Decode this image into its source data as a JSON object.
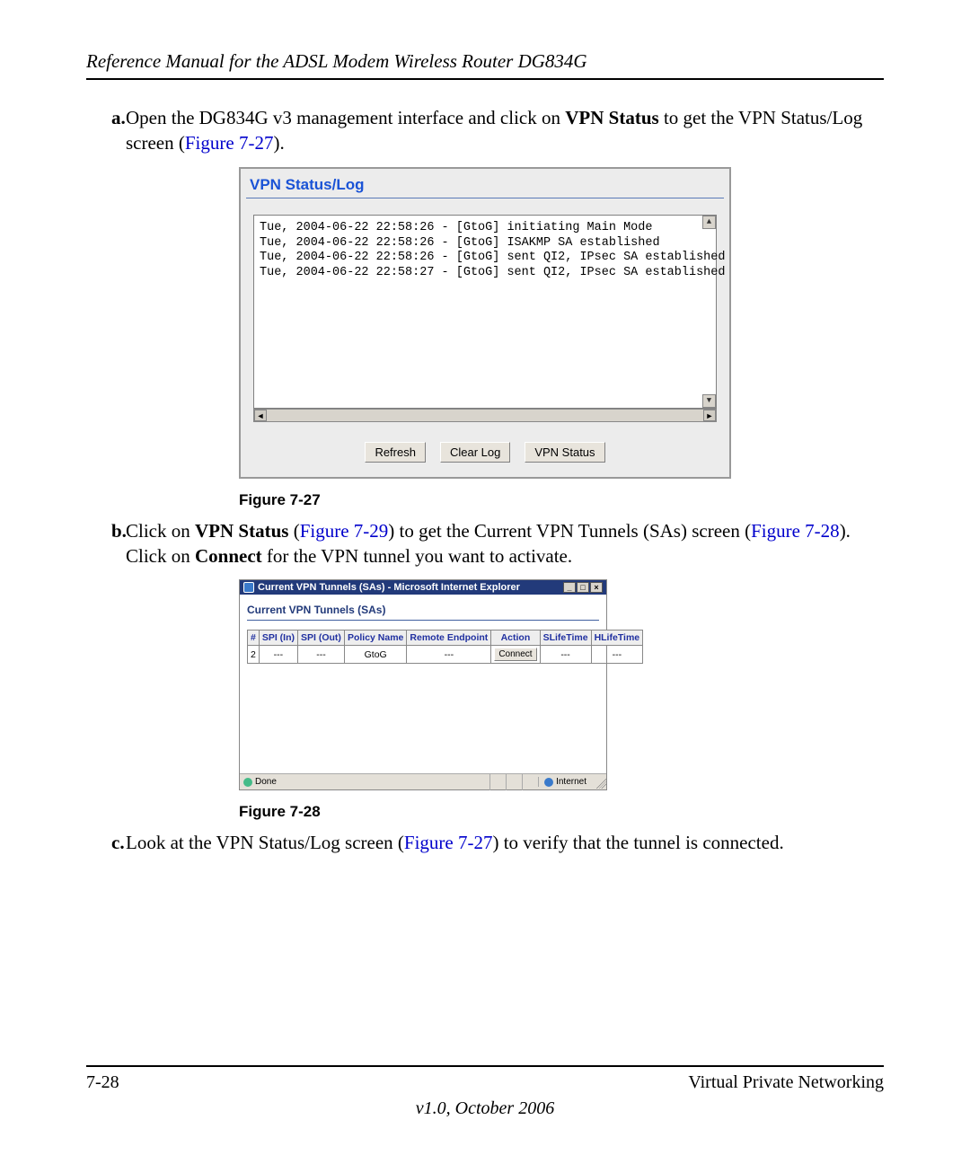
{
  "header": {
    "title": "Reference Manual for the ADSL Modem Wireless Router DG834G"
  },
  "step_a": {
    "bullet": "a.",
    "pre": "Open the DG834G v3 management interface and click on ",
    "bold": "VPN Status",
    "post1": " to get the VPN Status/Log screen (",
    "figlink": "Figure 7-27",
    "post2": ")."
  },
  "figure1": {
    "panel_title": "VPN Status/Log",
    "log_lines": "Tue, 2004-06-22 22:58:26 - [GtoG] initiating Main Mode\nTue, 2004-06-22 22:58:26 - [GtoG] ISAKMP SA established\nTue, 2004-06-22 22:58:26 - [GtoG] sent QI2, IPsec SA established\nTue, 2004-06-22 22:58:27 - [GtoG] sent QI2, IPsec SA established",
    "buttons": {
      "refresh": "Refresh",
      "clear": "Clear Log",
      "status": "VPN Status"
    },
    "caption": "Figure 7-27"
  },
  "step_b": {
    "bullet": "b.",
    "pre": "Click on ",
    "bold1": "VPN Status",
    "mid1": " (",
    "figA": "Figure 7-29",
    "mid2": ") to get the Current VPN Tunnels (SAs) screen (",
    "figB": "Figure 7-28",
    "mid3": "). Click on ",
    "bold2": "Connect",
    "post": " for the VPN tunnel you want to activate."
  },
  "figure2": {
    "window_title": "Current VPN Tunnels (SAs) - Microsoft Internet Explorer",
    "subtitle": "Current VPN Tunnels (SAs)",
    "columns": [
      "#",
      "SPI (In)",
      "SPI (Out)",
      "Policy Name",
      "Remote Endpoint",
      "Action",
      "SLifeTime",
      "HLifeTime"
    ],
    "row": {
      "num": "2",
      "spi_in": "---",
      "spi_out": "---",
      "policy": "GtoG",
      "remote": "---",
      "action_btn": "Connect",
      "slife": "---",
      "hlife": "---"
    },
    "status_done": "Done",
    "status_internet": "Internet",
    "caption": "Figure 7-28"
  },
  "step_c": {
    "bullet": "c.",
    "pre": "Look at the VPN Status/Log screen (",
    "figlink": "Figure 7-27",
    "post": ") to verify that the tunnel is connected."
  },
  "footer": {
    "left": "7-28",
    "right": "Virtual Private Networking",
    "version": "v1.0, October 2006"
  },
  "winbtns": {
    "min": "_",
    "max": "□",
    "close": "×"
  }
}
